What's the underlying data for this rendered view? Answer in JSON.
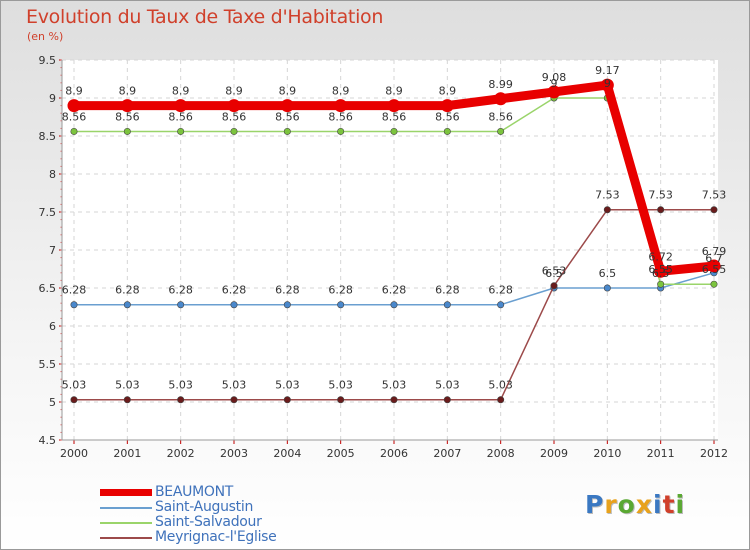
{
  "title": "Evolution du Taux de Taxe d'Habitation",
  "unit": "(en %)",
  "logo": {
    "text": "Proxiti",
    "colors": [
      "#3a78c2",
      "#e8a21c",
      "#5aa832",
      "#e8a21c",
      "#3a78c2",
      "#d0402b",
      "#5aa832"
    ]
  },
  "chart_data": {
    "type": "line",
    "x": [
      2000,
      2001,
      2002,
      2003,
      2004,
      2005,
      2006,
      2007,
      2008,
      2009,
      2010,
      2011,
      2012
    ],
    "ylim": [
      4.5,
      9.5
    ],
    "yticks": [
      "4.5",
      "5",
      "5.5",
      "6",
      "6.5",
      "7",
      "7.5",
      "8",
      "8.5",
      "9",
      "9.5"
    ],
    "grid": true,
    "legend_position": "bottom-left",
    "series": [
      {
        "name": "BEAUMONT",
        "color": "#e80000",
        "values": [
          8.9,
          8.9,
          8.9,
          8.9,
          8.9,
          8.9,
          8.9,
          8.9,
          8.99,
          9.08,
          9.17,
          6.72,
          6.79
        ],
        "labels": [
          "8.9",
          "8.9",
          "8.9",
          "8.9",
          "8.9",
          "8.9",
          "8.9",
          "8.9",
          "8.99",
          "9.08",
          "9.17",
          "6.72",
          "6.79"
        ]
      },
      {
        "name": "Saint-Augustin",
        "color": "#6a9fd0",
        "values": [
          6.28,
          6.28,
          6.28,
          6.28,
          6.28,
          6.28,
          6.28,
          6.28,
          6.28,
          6.5,
          6.5,
          6.5,
          6.7
        ],
        "labels": [
          "6.28",
          "6.28",
          "6.28",
          "6.28",
          "6.28",
          "6.28",
          "6.28",
          "6.28",
          "6.28",
          "6.5",
          "6.5",
          "6.5",
          "6.7"
        ]
      },
      {
        "name": "Saint-Salvadour",
        "color": "#9ad46a",
        "values": [
          8.56,
          8.56,
          8.56,
          8.56,
          8.56,
          8.56,
          8.56,
          8.56,
          8.56,
          9,
          9,
          6.55,
          6.55
        ],
        "labels": [
          "8.56",
          "8.56",
          "8.56",
          "8.56",
          "8.56",
          "8.56",
          "8.56",
          "8.56",
          "8.56",
          "9",
          "9",
          "6.55",
          "6.55"
        ]
      },
      {
        "name": "Meyrignac-l'Eglise",
        "color": "#9c4a4a",
        "values": [
          5.03,
          5.03,
          5.03,
          5.03,
          5.03,
          5.03,
          5.03,
          5.03,
          5.03,
          6.53,
          7.53,
          7.53,
          7.53
        ],
        "labels": [
          "5.03",
          "5.03",
          "5.03",
          "5.03",
          "5.03",
          "5.03",
          "5.03",
          "5.03",
          "5.03",
          "6.53",
          "7.53",
          "7.53",
          "7.53"
        ]
      }
    ]
  }
}
